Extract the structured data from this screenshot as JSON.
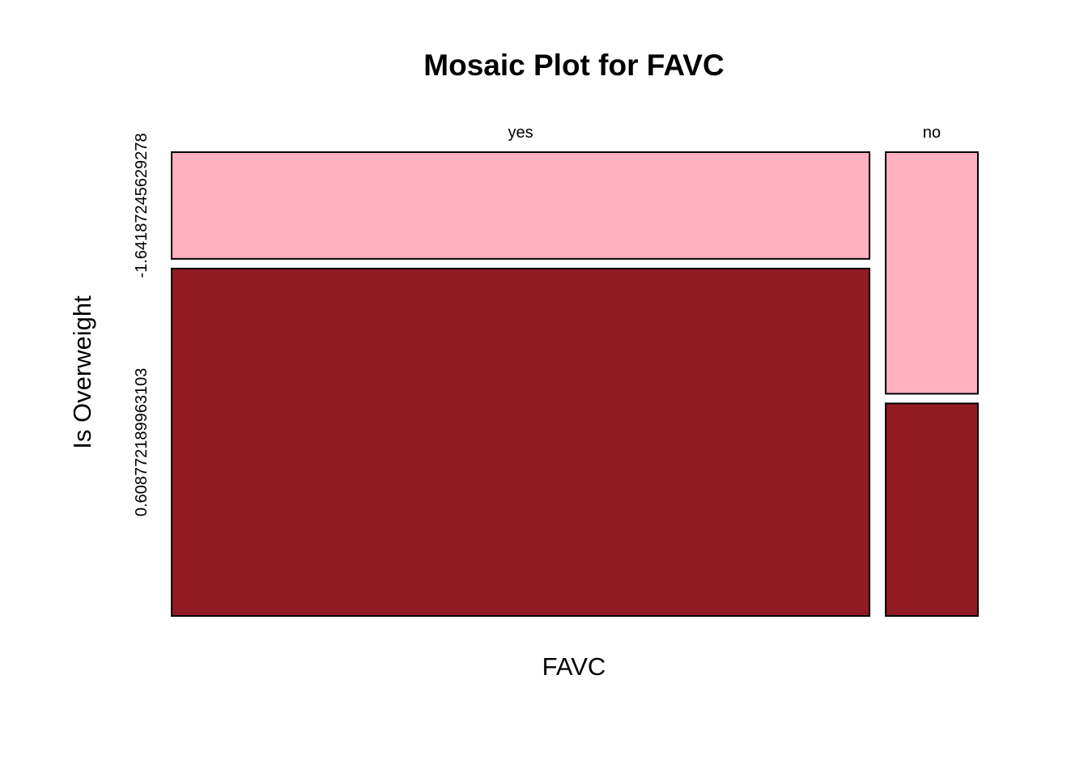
{
  "chart_data": {
    "type": "mosaic",
    "title": "Mosaic Plot for FAVC",
    "xlabel": "FAVC",
    "ylabel": "Is Overweight",
    "categories": [
      "yes",
      "no"
    ],
    "column_widths": [
      0.8833,
      0.1167
    ],
    "levels": [
      "-1.64187245629278",
      "0.608772189963103"
    ],
    "colors": [
      "#FFB0C1",
      "#921A22"
    ],
    "proportions": [
      [
        0.235,
        0.765
      ],
      [
        0.532,
        0.468
      ]
    ],
    "grid": false,
    "legend": "none"
  }
}
